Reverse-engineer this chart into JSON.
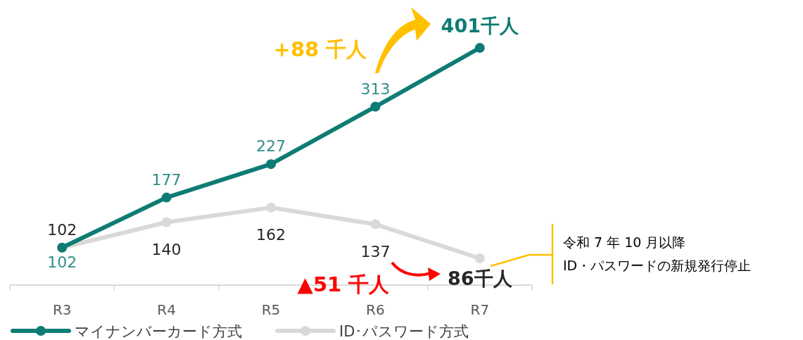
{
  "chart_data": {
    "type": "line",
    "categories": [
      "R3",
      "R4",
      "R5",
      "R6",
      "R7"
    ],
    "series": [
      {
        "name": "マイナンバーカード方式",
        "color": "#0e7c74",
        "values": [
          102,
          177,
          227,
          313,
          401
        ],
        "value_labels": [
          "102",
          "177",
          "227",
          "313",
          "401千人"
        ]
      },
      {
        "name": "ID･パスワード方式",
        "color": "#d9d9d9",
        "values": [
          102,
          140,
          162,
          137,
          86
        ],
        "value_labels": [
          "102",
          "140",
          "162",
          "137",
          "86千人"
        ]
      }
    ],
    "marker": "circle",
    "legend": "bottom",
    "annotations": [
      "+88 千人",
      "▲51 千人",
      "令和 7 年 10 月以降\nID・パスワードの新規発行停止"
    ]
  }
}
